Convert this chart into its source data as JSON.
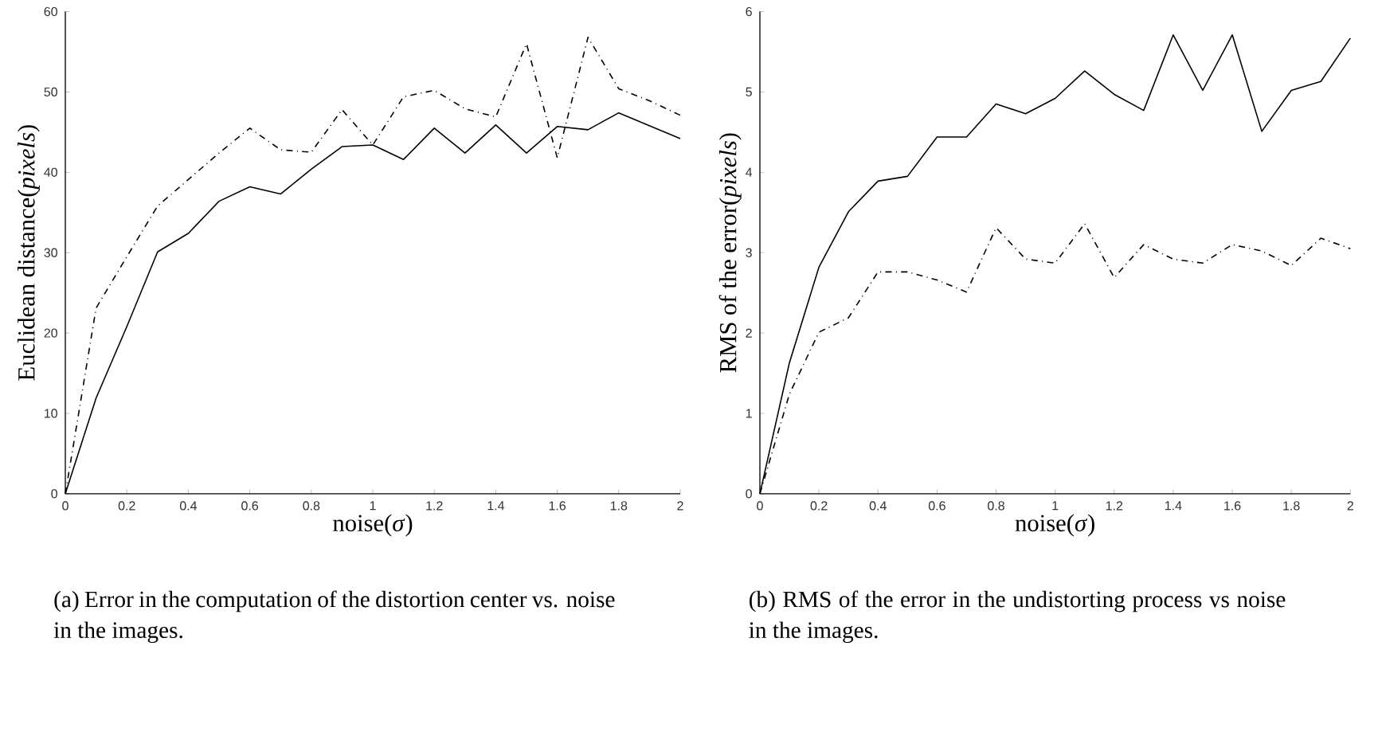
{
  "chart_data": [
    {
      "type": "line",
      "xlabel": "noise(*σ*)",
      "ylabel": "Euclidean distance(*pixels*)",
      "x": [
        0,
        0.1,
        0.2,
        0.3,
        0.4,
        0.5,
        0.6,
        0.7,
        0.8,
        0.9,
        1,
        1.1,
        1.2,
        1.3,
        1.4,
        1.5,
        1.6,
        1.7,
        1.8,
        1.9,
        2
      ],
      "series": [
        {
          "color": "#000000",
          "line_style": "solid",
          "values": [
            0,
            11.9,
            20.8,
            30.1,
            32.4,
            36.4,
            38.2,
            37.3,
            40.4,
            43.2,
            43.4,
            41.6,
            45.5,
            42.4,
            45.9,
            42.4,
            45.7,
            45.3,
            47.4,
            45.8,
            44.2
          ]
        },
        {
          "color": "#000000",
          "line_style": "dashdot",
          "values": [
            0,
            23.1,
            29.5,
            35.8,
            39.1,
            42.4,
            45.5,
            42.8,
            42.5,
            47.8,
            43.4,
            49.4,
            50.2,
            47.9,
            46.9,
            56.0,
            41.8,
            56.8,
            50.4,
            48.9,
            47.1
          ]
        }
      ],
      "xlim": [
        0,
        2
      ],
      "ylim": [
        0,
        60
      ],
      "xticks": [
        0,
        0.2,
        0.4,
        0.6,
        0.8,
        1,
        1.2,
        1.4,
        1.6,
        1.8,
        2
      ],
      "yticks": [
        0,
        10,
        20,
        30,
        40,
        50,
        60
      ],
      "annotations": [
        "(a) Error in the computation of the distortion center vs. noise in the images."
      ]
    },
    {
      "type": "line",
      "xlabel": "noise(*σ*)",
      "ylabel": "RMS of the error(*pixels*)",
      "x": [
        0,
        0.1,
        0.2,
        0.3,
        0.4,
        0.5,
        0.6,
        0.7,
        0.8,
        0.9,
        1,
        1.1,
        1.2,
        1.3,
        1.4,
        1.5,
        1.6,
        1.7,
        1.8,
        1.9,
        2
      ],
      "series": [
        {
          "color": "#000000",
          "line_style": "solid",
          "values": [
            0,
            1.63,
            2.82,
            3.51,
            3.89,
            3.95,
            4.44,
            4.44,
            4.85,
            4.73,
            4.92,
            5.26,
            4.97,
            4.77,
            5.71,
            5.02,
            5.71,
            4.51,
            5.02,
            5.13,
            5.67
          ]
        },
        {
          "color": "#000000",
          "line_style": "dashdot",
          "values": [
            0,
            1.24,
            2.01,
            2.19,
            2.76,
            2.76,
            2.66,
            2.51,
            3.31,
            2.92,
            2.87,
            3.36,
            2.69,
            3.1,
            2.92,
            2.87,
            3.1,
            3.02,
            2.84,
            3.18,
            3.05
          ]
        }
      ],
      "xlim": [
        0,
        2
      ],
      "ylim": [
        0,
        6
      ],
      "xticks": [
        0,
        0.2,
        0.4,
        0.6,
        0.8,
        1,
        1.2,
        1.4,
        1.6,
        1.8,
        2
      ],
      "yticks": [
        0,
        1,
        2,
        3,
        4,
        5,
        6
      ],
      "annotations": [
        "(b) RMS of the error in the undistorting process vs noise in the images."
      ]
    }
  ]
}
